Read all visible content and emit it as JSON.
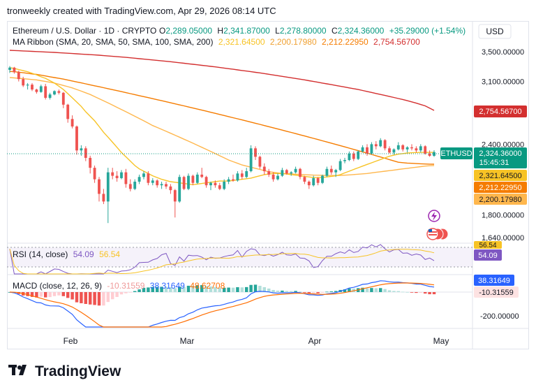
{
  "header": {
    "text": "tronweekly created with TradingView.com, Apr 29, 2026 08:14 UTC"
  },
  "legend": {
    "symbol": "Ethereum / U.S. Dollar · 1D · CRYPTO",
    "o_label": "O",
    "o": "2,289.05000",
    "h_label": "H",
    "h": "2,341.87000",
    "l_label": "L",
    "l": "2,278.80000",
    "c_label": "C",
    "c": "2,324.36000",
    "change": "+35.29000 (+1.54%)",
    "ma_label": "MA Ribbon (SMA, 20, SMA, 50, SMA, 100, SMA, 200)",
    "ma20": "2,321.64500",
    "ma50": "2,200.17980",
    "ma100": "2,212.22950",
    "ma200": "2,754.56700"
  },
  "currency_button": "USD",
  "colors": {
    "up": "#26a69a",
    "down": "#ef5350",
    "ma20": "#f7c325",
    "ma50": "#ffb74d",
    "ma100": "#f57c00",
    "ma200": "#d32f2f",
    "rsi": "#7e57c2",
    "macd": "#2962ff",
    "signal": "#ff6d00",
    "price_tag": "#089981"
  },
  "price_axis_labels": [
    "3,500.00000",
    "3,100.00000",
    "2,400.00000",
    "1,800.00000",
    "1,640.00000"
  ],
  "price_tags": {
    "current_symbol": "ETHUSD",
    "current": "2,324.36000",
    "countdown": "15:45:31",
    "ma200": "2,754.56700",
    "ma20": "2,321.64500",
    "ma100": "2,212.22950",
    "ma50": "2,200.17980"
  },
  "rsi": {
    "label": "RSI (14, close)",
    "value": "54.09",
    "ma": "56.54",
    "axis_top": "56.54"
  },
  "macd": {
    "label": "MACD (close, 12, 26, 9)",
    "hist": "-10.31559",
    "macd": "38.31649",
    "signal": "48.62708",
    "axis_label": "-200.00000"
  },
  "x_labels": [
    "Feb",
    "Mar",
    "Apr",
    "May"
  ],
  "logo": {
    "text": "TradingView"
  },
  "chart_data": {
    "type": "candlestick",
    "title": "Ethereum / U.S. Dollar · 1D · CRYPTO",
    "candles": [
      [
        3250,
        3300,
        3210,
        3280
      ],
      [
        3280,
        3290,
        3200,
        3220
      ],
      [
        3220,
        3240,
        3100,
        3130
      ],
      [
        3130,
        3160,
        3030,
        3050
      ],
      [
        3050,
        3080,
        3000,
        3060
      ],
      [
        3060,
        3080,
        2980,
        3000
      ],
      [
        3000,
        3010,
        2950,
        2970
      ],
      [
        2970,
        3060,
        2960,
        3040
      ],
      [
        3040,
        3070,
        2880,
        2900
      ],
      [
        2900,
        2960,
        2880,
        2940
      ],
      [
        2940,
        2990,
        2930,
        2980
      ],
      [
        2980,
        3000,
        2940,
        2960
      ],
      [
        2960,
        2970,
        2780,
        2820
      ],
      [
        2820,
        2830,
        2620,
        2660
      ],
      [
        2660,
        2700,
        2560,
        2580
      ],
      [
        2580,
        2590,
        2300,
        2340
      ],
      [
        2340,
        2390,
        2290,
        2360
      ],
      [
        2360,
        2380,
        2240,
        2270
      ],
      [
        2270,
        2290,
        2130,
        2180
      ],
      [
        2180,
        2200,
        2050,
        2080
      ],
      [
        2080,
        2100,
        1900,
        1960
      ],
      [
        1960,
        2000,
        1880,
        1900
      ],
      [
        1900,
        2180,
        1740,
        2140
      ],
      [
        2140,
        2180,
        2080,
        2110
      ],
      [
        2110,
        2150,
        2060,
        2090
      ],
      [
        2090,
        2160,
        2080,
        2140
      ],
      [
        2140,
        2170,
        2010,
        2040
      ],
      [
        2040,
        2080,
        1980,
        2000
      ],
      [
        2000,
        2080,
        1990,
        2060
      ],
      [
        2060,
        2120,
        2040,
        2100
      ],
      [
        2100,
        2150,
        2080,
        2130
      ],
      [
        2130,
        2150,
        2030,
        2050
      ],
      [
        2050,
        2090,
        2030,
        2070
      ],
      [
        2070,
        2080,
        2010,
        2030
      ],
      [
        2030,
        2060,
        2000,
        2040
      ],
      [
        2040,
        2060,
        2000,
        2020
      ],
      [
        2020,
        2040,
        1960,
        1990
      ],
      [
        1990,
        2000,
        1780,
        1900
      ],
      [
        1900,
        2120,
        1890,
        2100
      ],
      [
        2100,
        2110,
        1990,
        2000
      ],
      [
        2000,
        2130,
        1990,
        2110
      ],
      [
        2110,
        2120,
        2030,
        2050
      ],
      [
        2050,
        2140,
        2040,
        2120
      ],
      [
        2120,
        2180,
        2090,
        2100
      ],
      [
        2100,
        2110,
        2010,
        2030
      ],
      [
        2030,
        2060,
        1990,
        2050
      ],
      [
        2050,
        2070,
        2010,
        2030
      ],
      [
        2030,
        2050,
        1990,
        2000
      ],
      [
        2000,
        2080,
        1990,
        2060
      ],
      [
        2060,
        2100,
        2040,
        2080
      ],
      [
        2080,
        2120,
        2060,
        2070
      ],
      [
        2070,
        2150,
        2060,
        2130
      ],
      [
        2130,
        2160,
        2080,
        2100
      ],
      [
        2100,
        2180,
        2090,
        2150
      ],
      [
        2150,
        2390,
        2140,
        2360
      ],
      [
        2360,
        2380,
        2250,
        2280
      ],
      [
        2280,
        2290,
        2170,
        2190
      ],
      [
        2190,
        2220,
        2120,
        2150
      ],
      [
        2150,
        2170,
        2100,
        2120
      ],
      [
        2120,
        2140,
        2060,
        2080
      ],
      [
        2080,
        2130,
        2070,
        2110
      ],
      [
        2110,
        2180,
        2100,
        2160
      ],
      [
        2160,
        2170,
        2120,
        2130
      ],
      [
        2130,
        2150,
        2110,
        2140
      ],
      [
        2140,
        2190,
        2130,
        2170
      ],
      [
        2170,
        2180,
        2080,
        2100
      ],
      [
        2100,
        2110,
        2040,
        2060
      ],
      [
        2060,
        2070,
        2000,
        2030
      ],
      [
        2030,
        2110,
        2020,
        2090
      ],
      [
        2090,
        2100,
        2030,
        2050
      ],
      [
        2050,
        2120,
        2040,
        2110
      ],
      [
        2110,
        2190,
        2100,
        2170
      ],
      [
        2170,
        2200,
        2120,
        2140
      ],
      [
        2140,
        2170,
        2100,
        2160
      ],
      [
        2160,
        2260,
        2150,
        2240
      ],
      [
        2240,
        2270,
        2220,
        2250
      ],
      [
        2250,
        2330,
        2240,
        2310
      ],
      [
        2310,
        2330,
        2240,
        2260
      ],
      [
        2260,
        2340,
        2250,
        2330
      ],
      [
        2330,
        2390,
        2320,
        2370
      ],
      [
        2370,
        2400,
        2290,
        2310
      ],
      [
        2310,
        2420,
        2300,
        2400
      ],
      [
        2400,
        2430,
        2350,
        2380
      ],
      [
        2380,
        2460,
        2370,
        2440
      ],
      [
        2440,
        2450,
        2340,
        2360
      ],
      [
        2360,
        2380,
        2310,
        2320
      ],
      [
        2320,
        2360,
        2300,
        2350
      ],
      [
        2350,
        2420,
        2340,
        2390
      ],
      [
        2390,
        2400,
        2330,
        2350
      ],
      [
        2350,
        2380,
        2320,
        2370
      ],
      [
        2370,
        2400,
        2340,
        2360
      ],
      [
        2360,
        2380,
        2320,
        2340
      ],
      [
        2340,
        2400,
        2320,
        2380
      ],
      [
        2380,
        2390,
        2300,
        2310
      ],
      [
        2310,
        2340,
        2280,
        2289
      ],
      [
        2289,
        2342,
        2279,
        2324
      ]
    ],
    "ma20": [
      3280,
      3270,
      3255,
      3240,
      3225,
      3205,
      3185,
      3160,
      3140,
      3110,
      3080,
      3040,
      3000,
      2950,
      2900,
      2850,
      2800,
      2740,
      2690,
      2640,
      2580,
      2520,
      2470,
      2420,
      2370,
      2320,
      2280,
      2240,
      2200,
      2170,
      2150,
      2130,
      2110,
      2095,
      2080,
      2070,
      2060,
      2055,
      2050,
      2045,
      2040,
      2035,
      2040,
      2045,
      2050,
      2055,
      2060,
      2065,
      2065,
      2065,
      2070,
      2075,
      2080,
      2085,
      2090,
      2100,
      2110,
      2120,
      2125,
      2130,
      2130,
      2130,
      2125,
      2120,
      2115,
      2110,
      2105,
      2100,
      2095,
      2095,
      2095,
      2100,
      2105,
      2110,
      2120,
      2135,
      2150,
      2165,
      2180,
      2195,
      2210,
      2225,
      2240,
      2255,
      2270,
      2285,
      2295,
      2305,
      2310,
      2315,
      2318,
      2320,
      2321,
      2321,
      2321,
      2322
    ],
    "ma50": [
      3150,
      3145,
      3140,
      3135,
      3130,
      3125,
      3120,
      3110,
      3100,
      3090,
      3080,
      3065,
      3050,
      3035,
      3020,
      3000,
      2980,
      2960,
      2940,
      2915,
      2890,
      2865,
      2840,
      2815,
      2790,
      2765,
      2740,
      2715,
      2690,
      2665,
      2640,
      2615,
      2590,
      2570,
      2550,
      2530,
      2510,
      2490,
      2470,
      2450,
      2430,
      2410,
      2390,
      2370,
      2350,
      2330,
      2310,
      2290,
      2270,
      2250,
      2235,
      2220,
      2205,
      2195,
      2185,
      2175,
      2165,
      2155,
      2145,
      2140,
      2135,
      2130,
      2128,
      2126,
      2124,
      2122,
      2120,
      2118,
      2116,
      2115,
      2114,
      2113,
      2112,
      2112,
      2113,
      2115,
      2118,
      2121,
      2124,
      2127,
      2130,
      2135,
      2140,
      2145,
      2150,
      2155,
      2160,
      2165,
      2170,
      2175,
      2180,
      2185,
      2190,
      2195,
      2198,
      2200
    ],
    "ma100": [
      3230,
      3225,
      3220,
      3212,
      3205,
      3197,
      3190,
      3180,
      3170,
      3160,
      3150,
      3140,
      3130,
      3118,
      3106,
      3094,
      3082,
      3070,
      3058,
      3046,
      3034,
      3022,
      3010,
      2998,
      2986,
      2974,
      2962,
      2950,
      2938,
      2926,
      2914,
      2902,
      2890,
      2878,
      2866,
      2854,
      2842,
      2830,
      2818,
      2806,
      2794,
      2782,
      2770,
      2758,
      2746,
      2734,
      2722,
      2710,
      2698,
      2686,
      2674,
      2662,
      2650,
      2638,
      2626,
      2614,
      2602,
      2590,
      2578,
      2566,
      2554,
      2542,
      2530,
      2518,
      2506,
      2494,
      2482,
      2470,
      2458,
      2446,
      2434,
      2422,
      2410,
      2398,
      2386,
      2374,
      2362,
      2350,
      2338,
      2326,
      2314,
      2302,
      2290,
      2278,
      2266,
      2254,
      2242,
      2230,
      2226,
      2222,
      2220,
      2218,
      2216,
      2214,
      2213,
      2212
    ],
    "ma200": [
      3520,
      3517,
      3514,
      3511,
      3508,
      3505,
      3502,
      3499,
      3496,
      3493,
      3490,
      3486,
      3482,
      3478,
      3474,
      3470,
      3466,
      3462,
      3458,
      3454,
      3450,
      3445,
      3440,
      3435,
      3430,
      3425,
      3420,
      3414,
      3408,
      3402,
      3396,
      3390,
      3384,
      3378,
      3372,
      3366,
      3360,
      3353,
      3346,
      3339,
      3332,
      3325,
      3318,
      3311,
      3304,
      3297,
      3290,
      3282,
      3274,
      3266,
      3258,
      3250,
      3242,
      3234,
      3226,
      3218,
      3210,
      3201,
      3192,
      3183,
      3174,
      3165,
      3156,
      3147,
      3138,
      3129,
      3120,
      3110,
      3100,
      3090,
      3080,
      3070,
      3060,
      3050,
      3040,
      3030,
      3020,
      3010,
      3000,
      2988,
      2976,
      2964,
      2952,
      2940,
      2928,
      2916,
      2904,
      2892,
      2880,
      2866,
      2852,
      2838,
      2822,
      2806,
      2780,
      2755
    ],
    "rsi": {
      "value": 54.09,
      "ma": 56.54,
      "range": [
        0,
        100
      ]
    },
    "macd": {
      "macd": 38.31649,
      "signal": 48.62708,
      "hist": -10.31559
    },
    "x_ticks": [
      "Feb",
      "Mar",
      "Apr",
      "May"
    ]
  }
}
